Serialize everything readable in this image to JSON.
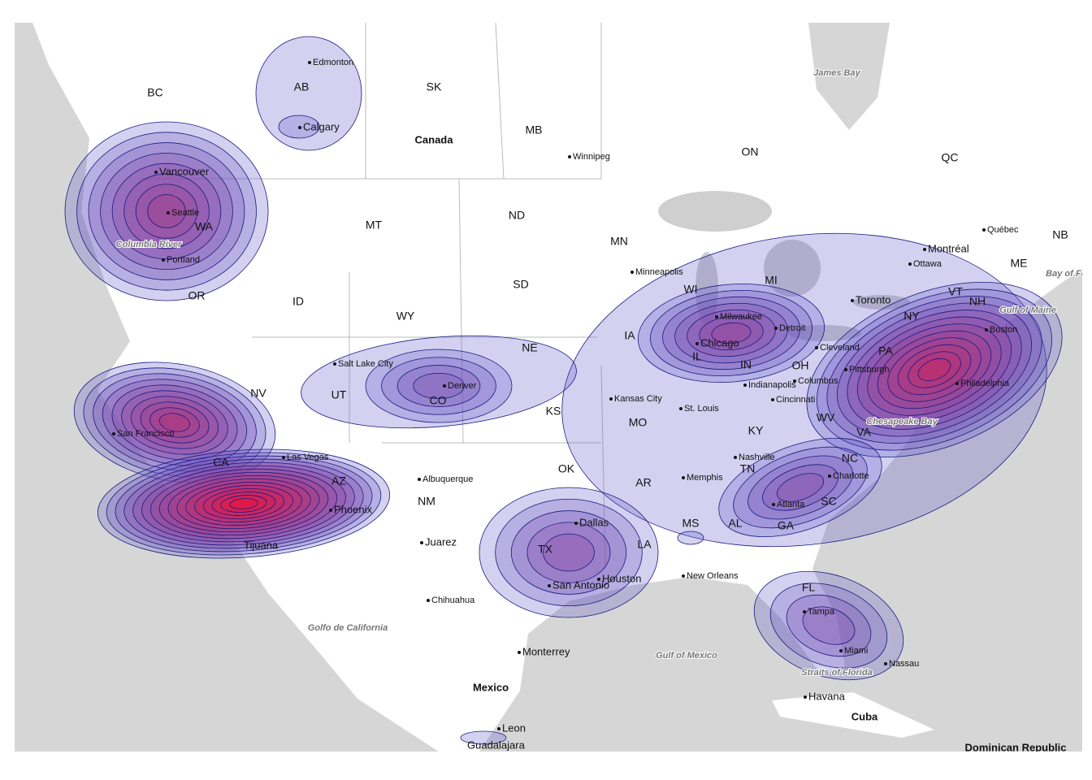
{
  "map": {
    "countries": [
      "Canada",
      "Mexico",
      "Cuba",
      "Dominican Republic"
    ],
    "regions": [
      "BC",
      "AB",
      "SK",
      "MB",
      "ON",
      "QC",
      "NB",
      "ME",
      "MT",
      "ND",
      "SD",
      "ID",
      "WY",
      "OR",
      "WA",
      "NV",
      "UT",
      "CO",
      "NE",
      "KS",
      "CA",
      "AZ",
      "NM",
      "OK",
      "TX",
      "MN",
      "IA",
      "WI",
      "MI",
      "IL",
      "IN",
      "OH",
      "MO",
      "KY",
      "WV",
      "VA",
      "NC",
      "TN",
      "SC",
      "AR",
      "MS",
      "AL",
      "GA",
      "LA",
      "FL",
      "NY",
      "PA",
      "VT",
      "NH"
    ],
    "cities": [
      "Edmonton",
      "Calgary",
      "Winnipeg",
      "Vancouver",
      "Seattle",
      "Portland",
      "Salt Lake City",
      "Denver",
      "Las Vegas",
      "Phoenix",
      "Tijuana",
      "Albuquerque",
      "Juarez",
      "Chihuahua",
      "Monterrey",
      "Dallas",
      "Houston",
      "San Antonio",
      "Kansas City",
      "St. Louis",
      "Memphis",
      "New Orleans",
      "Nashville",
      "Minneapolis",
      "Milwaukee",
      "Chicago",
      "Detroit",
      "Toronto",
      "Cleveland",
      "Indianapolis",
      "Columbus",
      "Cincinnati",
      "Atlanta",
      "Charlotte",
      "Tampa",
      "Miami",
      "Nassau",
      "Havana",
      "Montréal",
      "Ottawa",
      "Québec",
      "Boston",
      "Pittsburgh",
      "Philadelphia",
      "Leon",
      "Guadalajara",
      "San Francisco"
    ],
    "water": [
      "James Bay",
      "Columbia River",
      "Golfo de California",
      "Gulf of Mexico",
      "Straits of Florida",
      "Chesapeake Bay",
      "Gulf of Maine",
      "Bay of Fundy"
    ]
  }
}
